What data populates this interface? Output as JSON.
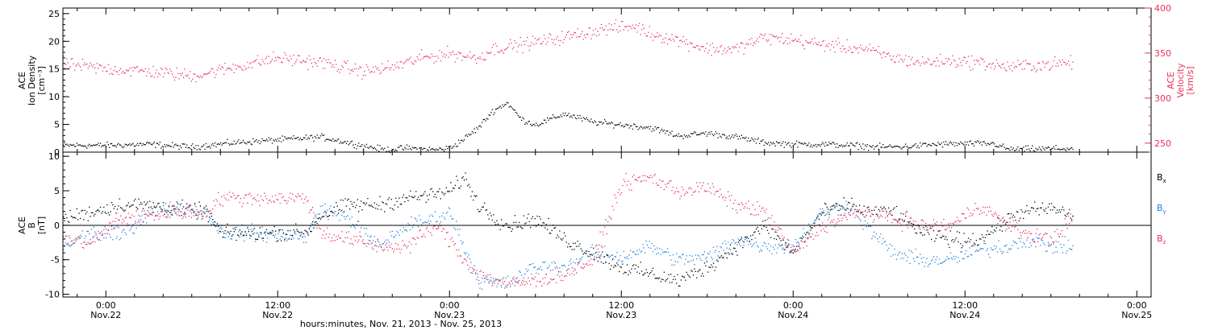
{
  "figure": {
    "xlabel": "hours:minutes, Nov. 21, 2013 - Nov. 25, 2013",
    "time_range_hours": [
      -3,
      73
    ],
    "time_axis_start": "2013-11-21 21:00",
    "ticks": [
      {
        "t": 0,
        "time": "0:00",
        "day": "Nov.22"
      },
      {
        "t": 12,
        "time": "12:00",
        "day": "Nov.22"
      },
      {
        "t": 24,
        "time": "0:00",
        "day": "Nov.23"
      },
      {
        "t": 36,
        "time": "12:00",
        "day": "Nov.23"
      },
      {
        "t": 48,
        "time": "0:00",
        "day": "Nov.24"
      },
      {
        "t": 60,
        "time": "12:00",
        "day": "Nov.24"
      },
      {
        "t": 72,
        "time": "0:00",
        "day": "Nov.25"
      }
    ]
  },
  "chart_data": [
    {
      "type": "scatter",
      "panel": "top",
      "ylabel": [
        "ACE",
        "Ion Density",
        "[cm⁻³]"
      ],
      "ylim": [
        0,
        26
      ],
      "yticks": [
        0,
        5,
        10,
        15,
        20,
        25
      ],
      "y2label": [
        "ACE",
        "Velocity",
        "[km/s]"
      ],
      "y2lim": [
        240,
        400
      ],
      "y2ticks": [
        250,
        300,
        350,
        400
      ],
      "series": [
        {
          "color": "#000000",
          "axis": "left",
          "x": [
            -3,
            0,
            3,
            6,
            9,
            12,
            15,
            18,
            19.5,
            21,
            23,
            24,
            25,
            26,
            27,
            28,
            29,
            30,
            32,
            34,
            36,
            38,
            40,
            42,
            44,
            46,
            48,
            50,
            52,
            54,
            56,
            58,
            60,
            62,
            63,
            64,
            66,
            67.5
          ],
          "y": [
            1.3,
            1.3,
            1.5,
            1.0,
            1.8,
            2.3,
            2.8,
            1.2,
            0.5,
            0.8,
            0.5,
            0.8,
            2.5,
            4.5,
            7.5,
            9.0,
            6.0,
            5.0,
            7.0,
            5.5,
            5.0,
            4.5,
            3.0,
            3.5,
            2.8,
            1.8,
            1.5,
            1.5,
            1.3,
            1.0,
            1.1,
            1.5,
            1.6,
            1.6,
            0.6,
            0.6,
            0.7,
            0.7
          ]
        },
        {
          "color": "#E8305C",
          "axis": "right",
          "x": [
            -3,
            0,
            3,
            6,
            9,
            12,
            15,
            18,
            20,
            22,
            24,
            26,
            27,
            29,
            32,
            35,
            37,
            38,
            40,
            42,
            44,
            46,
            48,
            50,
            53,
            55,
            57,
            59,
            61,
            63,
            66,
            67.5
          ],
          "y": [
            338,
            333,
            330,
            325,
            335,
            345,
            340,
            330,
            335,
            345,
            350,
            345,
            355,
            360,
            368,
            378,
            380,
            372,
            365,
            355,
            355,
            368,
            365,
            360,
            355,
            345,
            340,
            342,
            340,
            335,
            338,
            340
          ]
        }
      ]
    },
    {
      "type": "scatter",
      "panel": "bottom",
      "ylabel": [
        "ACE",
        "B",
        "[nT]"
      ],
      "ylim": [
        -10.4,
        10.6
      ],
      "yticks": [
        -10,
        -5,
        0,
        5,
        10
      ],
      "zero_line": true,
      "legend": [
        "Bx",
        "By",
        "Bz"
      ],
      "series": [
        {
          "name": "Bx",
          "color": "#000000",
          "x": [
            -3,
            -1,
            1,
            3,
            5,
            7,
            8,
            10,
            12,
            14,
            15,
            17,
            19,
            21,
            23,
            24,
            25,
            26,
            28,
            30,
            32,
            34,
            36,
            38,
            40,
            42,
            44,
            46,
            48,
            50,
            52,
            53,
            55,
            57,
            59,
            61,
            63,
            64,
            66,
            67.5
          ],
          "y": [
            1.0,
            2.0,
            3.0,
            3.0,
            2.5,
            2.0,
            -1.0,
            -1.2,
            -1.0,
            -1.0,
            1.5,
            3.0,
            3.0,
            4.0,
            4.5,
            5.0,
            7.0,
            3.0,
            0.0,
            1.0,
            -2.0,
            -4.0,
            -6.0,
            -7.0,
            -8.0,
            -6.0,
            -3.0,
            0.0,
            -4.0,
            2.0,
            3.0,
            2.0,
            2.0,
            -1.0,
            -2.0,
            -2.0,
            1.0,
            2.0,
            2.5,
            1.5
          ]
        },
        {
          "name": "By",
          "color": "#1E82DC",
          "x": [
            -3,
            -1,
            1,
            3,
            5,
            7,
            8,
            10,
            12,
            14,
            15,
            17,
            19,
            21,
            23,
            24,
            25,
            26,
            28,
            30,
            32,
            34,
            36,
            38,
            40,
            42,
            44,
            46,
            48,
            50,
            52,
            53,
            55,
            57,
            59,
            61,
            63,
            64,
            66,
            67.5
          ],
          "y": [
            -3.0,
            -1.0,
            -1.5,
            2.0,
            2.5,
            2.0,
            -1.0,
            -1.0,
            -1.5,
            -1.5,
            2.5,
            1.0,
            -3.0,
            0.0,
            1.0,
            2.0,
            -3.0,
            -8.0,
            -8.5,
            -6.0,
            -6.0,
            -4.0,
            -4.5,
            -3.0,
            -5.0,
            -4.5,
            -2.0,
            -3.0,
            -3.0,
            2.0,
            3.0,
            0.0,
            -4.0,
            -5.0,
            -5.0,
            -3.5,
            -3.0,
            -2.0,
            -3.0,
            -3.0
          ]
        },
        {
          "name": "Bz",
          "color": "#E8305C",
          "x": [
            -3,
            -1,
            1,
            3,
            5,
            7,
            8,
            10,
            12,
            14,
            15,
            17,
            19,
            21,
            23,
            24,
            25,
            26,
            28,
            30,
            32,
            34,
            36,
            38,
            40,
            42,
            44,
            46,
            48,
            50,
            52,
            53,
            55,
            57,
            59,
            61,
            63,
            64,
            66,
            67.5
          ],
          "y": [
            -2.0,
            -2.5,
            1.0,
            1.5,
            2.0,
            2.0,
            4.0,
            4.0,
            4.0,
            4.0,
            -1.0,
            -2.0,
            -3.0,
            -3.0,
            0.0,
            -2.0,
            -5.0,
            -7.0,
            -8.5,
            -8.0,
            -7.0,
            -5.0,
            6.0,
            7.0,
            5.0,
            5.5,
            3.0,
            2.0,
            -4.0,
            0.0,
            1.5,
            2.0,
            1.0,
            0.0,
            0.0,
            3.0,
            0.0,
            -1.0,
            -2.0,
            1.0
          ]
        }
      ]
    }
  ],
  "colors": {
    "black": "#000000",
    "pink": "#E8305C",
    "blue": "#1E82DC"
  }
}
